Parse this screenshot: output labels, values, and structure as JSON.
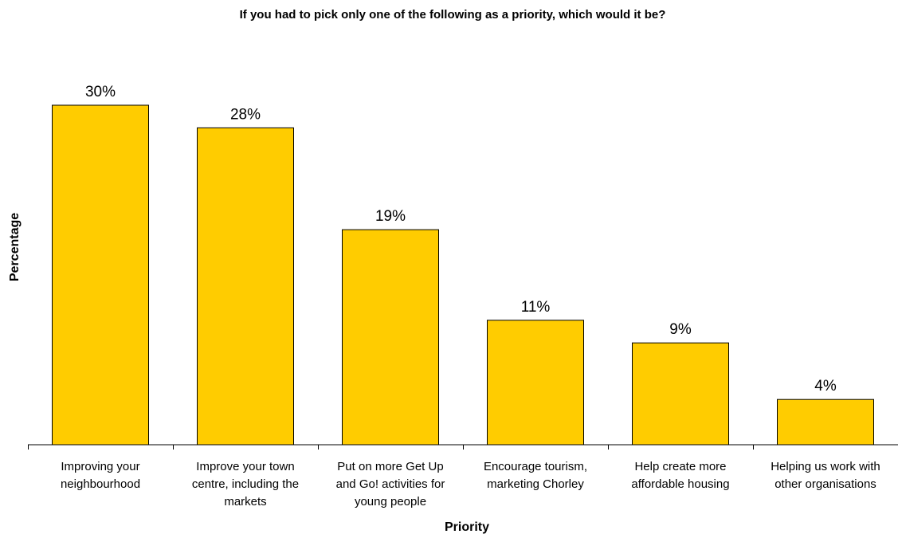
{
  "chart_data": {
    "type": "bar",
    "title": "If you had to pick only one of the following as a priority, which would it be?",
    "xlabel": "Priority",
    "ylabel": "Percentage",
    "ylim": [
      0,
      30
    ],
    "grid": false,
    "legend": "none",
    "bar_color": "#FFCC00",
    "bar_stroke": "#000000",
    "categories": [
      [
        "Improving your",
        "neighbourhood"
      ],
      [
        "Improve your town",
        "centre, including the",
        "markets"
      ],
      [
        "Put on more Get Up",
        "and Go! activities for",
        "young people"
      ],
      [
        "Encourage tourism,",
        "marketing Chorley"
      ],
      [
        "Help create more",
        "affordable housing"
      ],
      [
        "Helping us work with",
        "other organisations"
      ]
    ],
    "values": [
      30,
      28,
      19,
      11,
      9,
      4
    ],
    "data_labels": [
      "30%",
      "28%",
      "19%",
      "11%",
      "9%",
      "4%"
    ]
  }
}
